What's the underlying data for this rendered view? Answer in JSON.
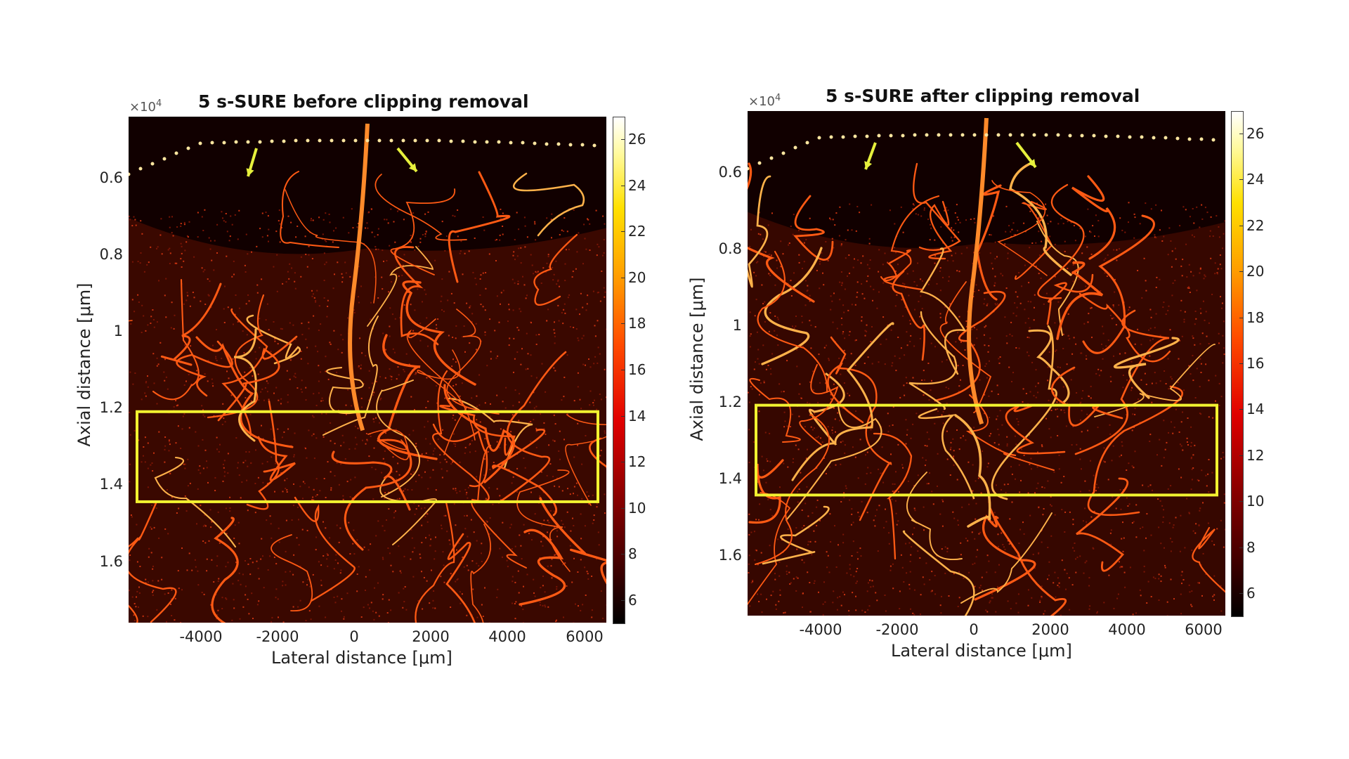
{
  "panels": [
    {
      "title": "5 s-SURE before clipping removal",
      "y_exponent_base": "×10",
      "y_exponent_power": "4",
      "ylabel_prefix": "Axial distance [",
      "ylabel_unit": "μm",
      "ylabel_suffix": "]",
      "xlabel_prefix": "Lateral distance [",
      "xlabel_unit": "μm",
      "xlabel_suffix": "]",
      "y_ticks": [
        "0.6",
        "0.8",
        "1",
        "1.2",
        "1.4",
        "1.6"
      ],
      "x_ticks": [
        "-4000",
        "-2000",
        "0",
        "2000",
        "4000",
        "6000"
      ],
      "colorbar_ticks": [
        "26",
        "24",
        "22",
        "20",
        "18",
        "16",
        "14",
        "12",
        "10",
        "8",
        "6"
      ]
    },
    {
      "title": "5 s-SURE after clipping removal",
      "y_exponent_base": "×10",
      "y_exponent_power": "4",
      "ylabel_prefix": "Axial distance [",
      "ylabel_unit": "μm",
      "ylabel_suffix": "]",
      "xlabel_prefix": "Lateral distance [",
      "xlabel_unit": "μm",
      "xlabel_suffix": "]",
      "y_ticks": [
        "0.6",
        "0.8",
        "1",
        "1.2",
        "1.4",
        "1.6"
      ],
      "x_ticks": [
        "-4000",
        "-2000",
        "0",
        "2000",
        "4000",
        "6000"
      ],
      "colorbar_ticks": [
        "26",
        "24",
        "22",
        "20",
        "18",
        "16",
        "14",
        "12",
        "10",
        "8",
        "6"
      ]
    }
  ],
  "colors": {
    "highlight_box": "#f2f230",
    "arrow": "#e6f03c",
    "vessel": "#ff6a1a",
    "background": "#120000"
  }
}
